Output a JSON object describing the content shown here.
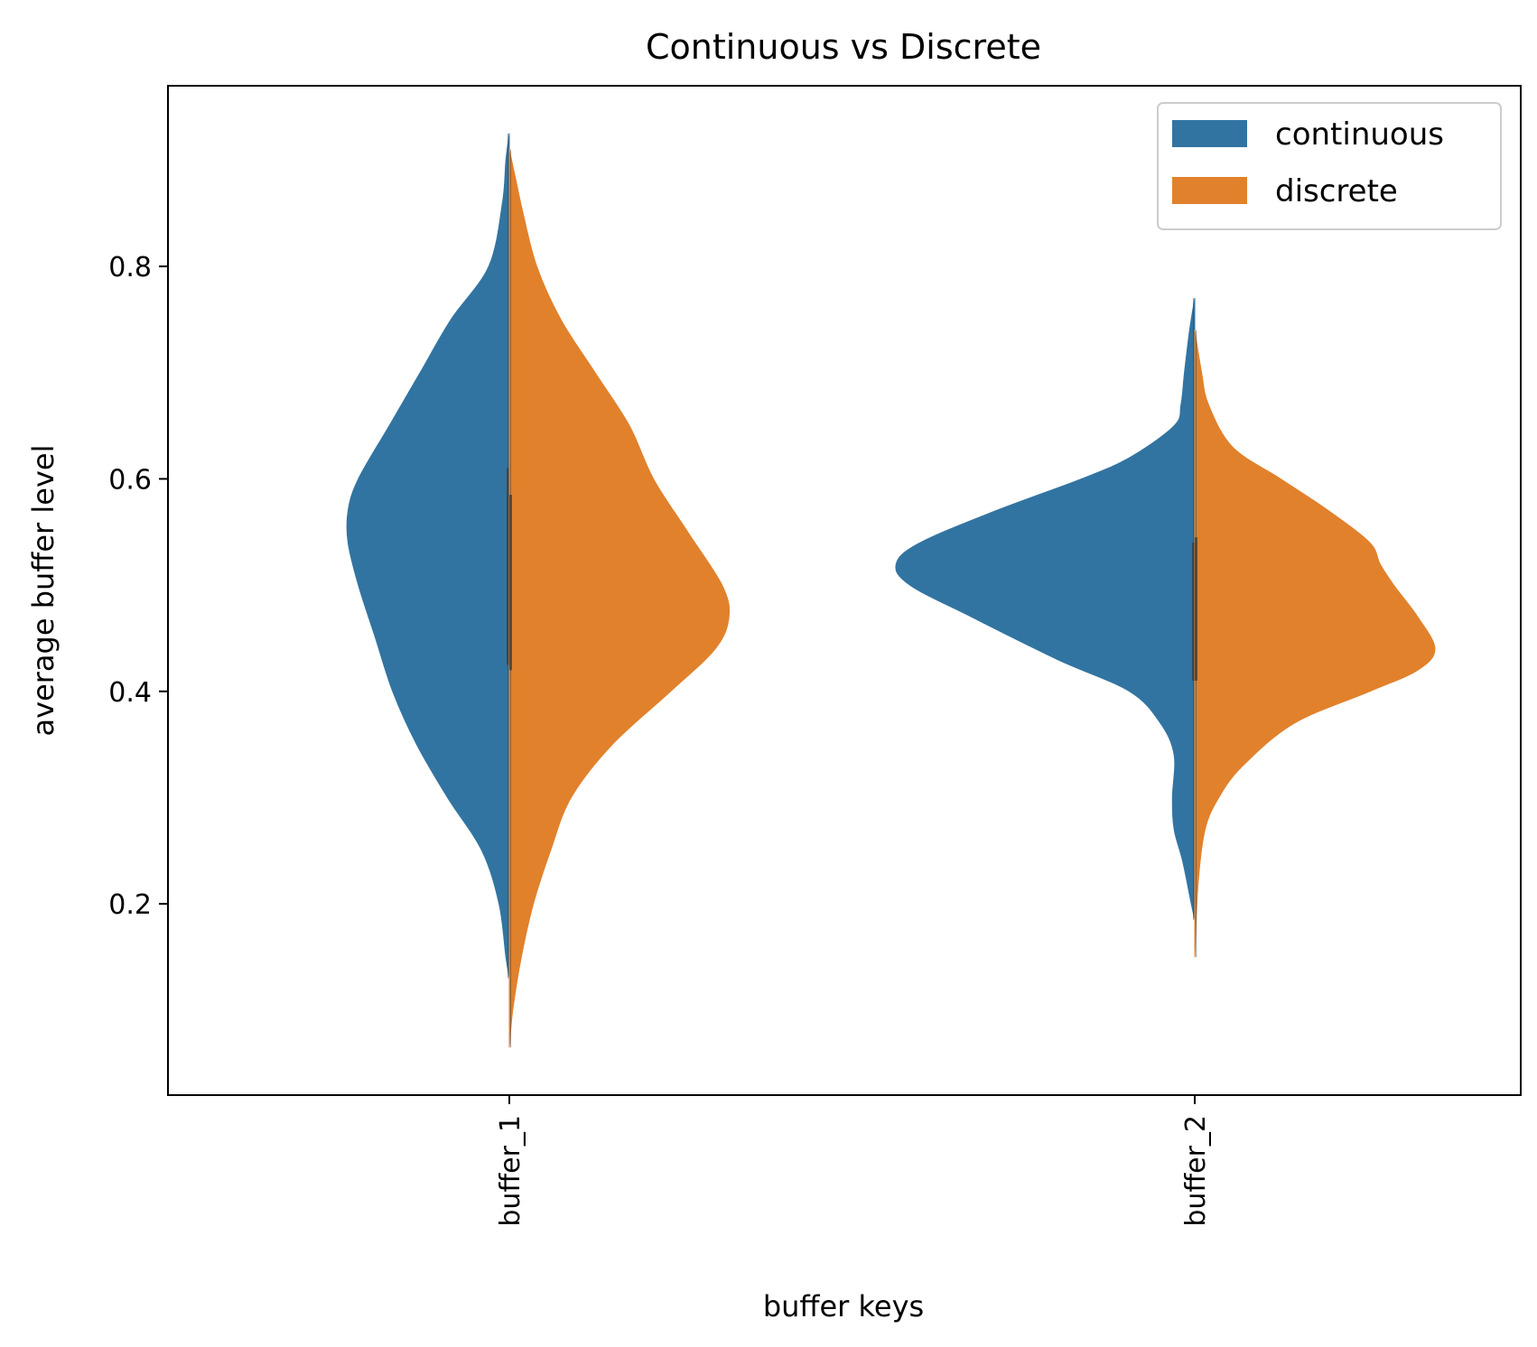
{
  "chart_data": {
    "type": "violin",
    "split": true,
    "title": "Continuous vs Discrete",
    "xlabel": "buffer keys",
    "ylabel": "average buffer level",
    "categories": [
      "buffer_1",
      "buffer_2"
    ],
    "ylim": [
      0.02,
      0.97
    ],
    "yticks": [
      {
        "value": 0.2,
        "label": "0.2"
      },
      {
        "value": 0.4,
        "label": "0.4"
      },
      {
        "value": 0.6,
        "label": "0.6"
      },
      {
        "value": 0.8,
        "label": "0.8"
      }
    ],
    "grid": false,
    "legend": {
      "position": "top-right"
    },
    "series": [
      {
        "name": "continuous",
        "color": "#3274a1",
        "side": "left",
        "violins": [
          {
            "category": "buffer_1",
            "ymin": 0.13,
            "ymax": 0.925,
            "quartiles": [
              0.425,
              0.53,
              0.61
            ],
            "density": [
              [
                0.925,
                0.0
              ],
              [
                0.9,
                0.01
              ],
              [
                0.86,
                0.02
              ],
              [
                0.8,
                0.06
              ],
              [
                0.75,
                0.17
              ],
              [
                0.7,
                0.26
              ],
              [
                0.65,
                0.35
              ],
              [
                0.6,
                0.44
              ],
              [
                0.57,
                0.47
              ],
              [
                0.54,
                0.47
              ],
              [
                0.5,
                0.44
              ],
              [
                0.45,
                0.39
              ],
              [
                0.4,
                0.34
              ],
              [
                0.35,
                0.27
              ],
              [
                0.3,
                0.18
              ],
              [
                0.25,
                0.08
              ],
              [
                0.2,
                0.03
              ],
              [
                0.15,
                0.01
              ],
              [
                0.13,
                0.0
              ]
            ]
          },
          {
            "category": "buffer_2",
            "ymin": 0.185,
            "ymax": 0.77,
            "quartiles": [
              0.41,
              0.465,
              0.54
            ],
            "density": [
              [
                0.77,
                0.0
              ],
              [
                0.74,
                0.015
              ],
              [
                0.7,
                0.03
              ],
              [
                0.67,
                0.04
              ],
              [
                0.65,
                0.06
              ],
              [
                0.62,
                0.19
              ],
              [
                0.6,
                0.33
              ],
              [
                0.57,
                0.58
              ],
              [
                0.54,
                0.8
              ],
              [
                0.52,
                0.87
              ],
              [
                0.5,
                0.83
              ],
              [
                0.47,
                0.65
              ],
              [
                0.43,
                0.4
              ],
              [
                0.4,
                0.19
              ],
              [
                0.37,
                0.1
              ],
              [
                0.34,
                0.06
              ],
              [
                0.3,
                0.065
              ],
              [
                0.27,
                0.06
              ],
              [
                0.24,
                0.035
              ],
              [
                0.2,
                0.01
              ],
              [
                0.185,
                0.0
              ]
            ]
          }
        ]
      },
      {
        "name": "discrete",
        "color": "#e1812c",
        "side": "right",
        "violins": [
          {
            "category": "buffer_1",
            "ymin": 0.065,
            "ymax": 0.91,
            "quartiles": [
              0.42,
              0.49,
              0.585
            ],
            "density": [
              [
                0.91,
                0.0
              ],
              [
                0.88,
                0.02
              ],
              [
                0.85,
                0.04
              ],
              [
                0.8,
                0.08
              ],
              [
                0.75,
                0.15
              ],
              [
                0.7,
                0.25
              ],
              [
                0.65,
                0.35
              ],
              [
                0.6,
                0.42
              ],
              [
                0.55,
                0.52
              ],
              [
                0.5,
                0.62
              ],
              [
                0.47,
                0.64
              ],
              [
                0.44,
                0.6
              ],
              [
                0.4,
                0.47
              ],
              [
                0.35,
                0.3
              ],
              [
                0.3,
                0.18
              ],
              [
                0.25,
                0.12
              ],
              [
                0.2,
                0.07
              ],
              [
                0.15,
                0.035
              ],
              [
                0.1,
                0.01
              ],
              [
                0.065,
                0.0
              ]
            ]
          },
          {
            "category": "buffer_2",
            "ymin": 0.15,
            "ymax": 0.74,
            "quartiles": [
              0.41,
              0.46,
              0.545
            ],
            "density": [
              [
                0.74,
                0.0
              ],
              [
                0.7,
                0.02
              ],
              [
                0.67,
                0.04
              ],
              [
                0.63,
                0.11
              ],
              [
                0.6,
                0.25
              ],
              [
                0.57,
                0.39
              ],
              [
                0.54,
                0.51
              ],
              [
                0.52,
                0.54
              ],
              [
                0.5,
                0.58
              ],
              [
                0.47,
                0.65
              ],
              [
                0.44,
                0.7
              ],
              [
                0.42,
                0.65
              ],
              [
                0.4,
                0.51
              ],
              [
                0.37,
                0.29
              ],
              [
                0.33,
                0.14
              ],
              [
                0.3,
                0.07
              ],
              [
                0.27,
                0.03
              ],
              [
                0.22,
                0.01
              ],
              [
                0.15,
                0.0
              ]
            ]
          }
        ]
      }
    ]
  }
}
